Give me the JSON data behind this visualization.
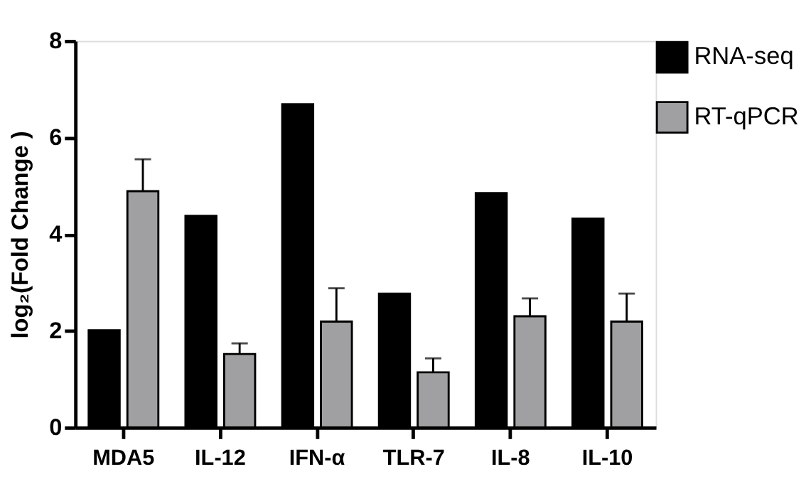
{
  "chart_data": {
    "type": "bar",
    "ylabel": "log₂(Fold Change )",
    "categories": [
      "MDA5",
      "IL-12",
      "IFN-α",
      "TLR-7",
      "IL-8",
      "IL-10"
    ],
    "series": [
      {
        "name": "RNA-seq",
        "color": "#000000",
        "values": [
          2.01,
          4.38,
          6.69,
          2.77,
          4.85,
          4.32
        ]
      },
      {
        "name": "RT-qPCR",
        "color": "#a0a0a2",
        "values": [
          4.89,
          1.52,
          2.19,
          1.14,
          2.3,
          2.19
        ],
        "errors": [
          [
            4.89,
            5.55
          ],
          [
            1.52,
            1.74
          ],
          [
            2.19,
            2.88
          ],
          [
            1.14,
            1.43
          ],
          [
            2.3,
            2.67
          ],
          [
            2.19,
            2.77
          ]
        ]
      }
    ],
    "ylim": [
      0,
      8
    ],
    "yticks": [
      0,
      2,
      4,
      6,
      8
    ],
    "grid": false,
    "legend": "top right"
  }
}
